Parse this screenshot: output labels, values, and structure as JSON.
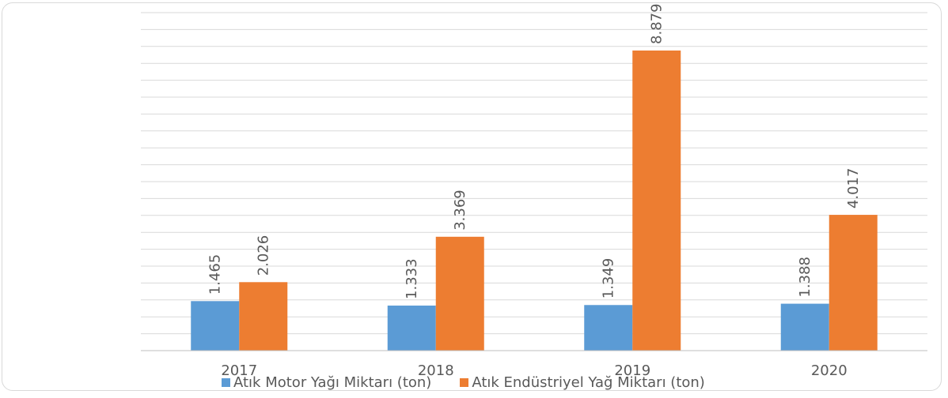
{
  "chart_data": {
    "type": "bar",
    "categories": [
      "2017",
      "2018",
      "2019",
      "2020"
    ],
    "series": [
      {
        "name": "Atık Motor Yağı Miktarı (ton)",
        "values": [
          1465,
          1333,
          1349,
          1388
        ],
        "labels": [
          "1.465",
          "1.333",
          "1.349",
          "1.388"
        ]
      },
      {
        "name": "Atık Endüstriyel Yağ Miktarı (ton)",
        "values": [
          2026,
          3369,
          8879,
          4017
        ],
        "labels": [
          "2.026",
          "3.369",
          "8.879",
          "4.017"
        ]
      }
    ],
    "title": "",
    "xlabel": "",
    "ylabel": "",
    "ylim": [
      0,
      10000
    ],
    "grid": true,
    "legend_position": "bottom"
  },
  "colors": {
    "series1": "#5b9bd5",
    "series2": "#ed7d31",
    "grid": "#d9d9d9",
    "text": "#595959"
  }
}
